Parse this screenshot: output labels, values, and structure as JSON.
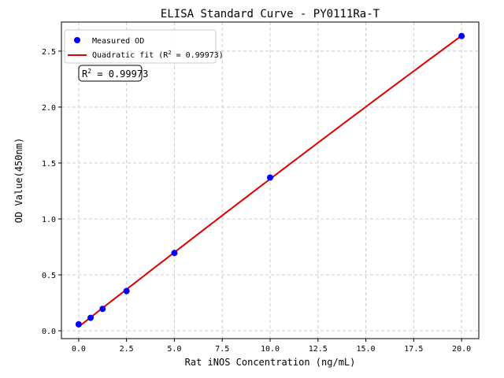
{
  "chart_data": {
    "type": "scatter",
    "title": "ELISA Standard Curve - PY0111Ra-T",
    "xlabel": "Rat iNOS Concentration (ng/mL)",
    "ylabel": "OD Value(450nm)",
    "xlim": [
      -0.9,
      20.9
    ],
    "ylim": [
      -0.07,
      2.76
    ],
    "xticks": [
      0.0,
      2.5,
      5.0,
      7.5,
      10.0,
      12.5,
      15.0,
      17.5,
      20.0
    ],
    "xtick_labels": [
      "0.0",
      "2.5",
      "5.0",
      "7.5",
      "10.0",
      "12.5",
      "15.0",
      "17.5",
      "20.0"
    ],
    "yticks": [
      0.0,
      0.5,
      1.0,
      1.5,
      2.0,
      2.5
    ],
    "ytick_labels": [
      "0.0",
      "0.5",
      "1.0",
      "1.5",
      "2.0",
      "2.5"
    ],
    "grid": true,
    "legend_position": "top-left",
    "series": [
      {
        "name": "Measured OD",
        "kind": "scatter",
        "color": "#0000ff",
        "x": [
          0,
          0.625,
          1.25,
          2.5,
          5,
          10,
          20
        ],
        "y": [
          0.058,
          0.116,
          0.196,
          0.355,
          0.696,
          1.37,
          2.635
        ]
      },
      {
        "name": "Quadratic fit (R² = 0.99973)",
        "name_prefix": "Quadratic fit (R",
        "name_suffix": " = 0.99973)",
        "kind": "line",
        "color": "#dd0000",
        "fit": "quadratic"
      }
    ],
    "annotation": {
      "prefix": "R",
      "sup": "2",
      "suffix": " = 0.99973"
    }
  }
}
